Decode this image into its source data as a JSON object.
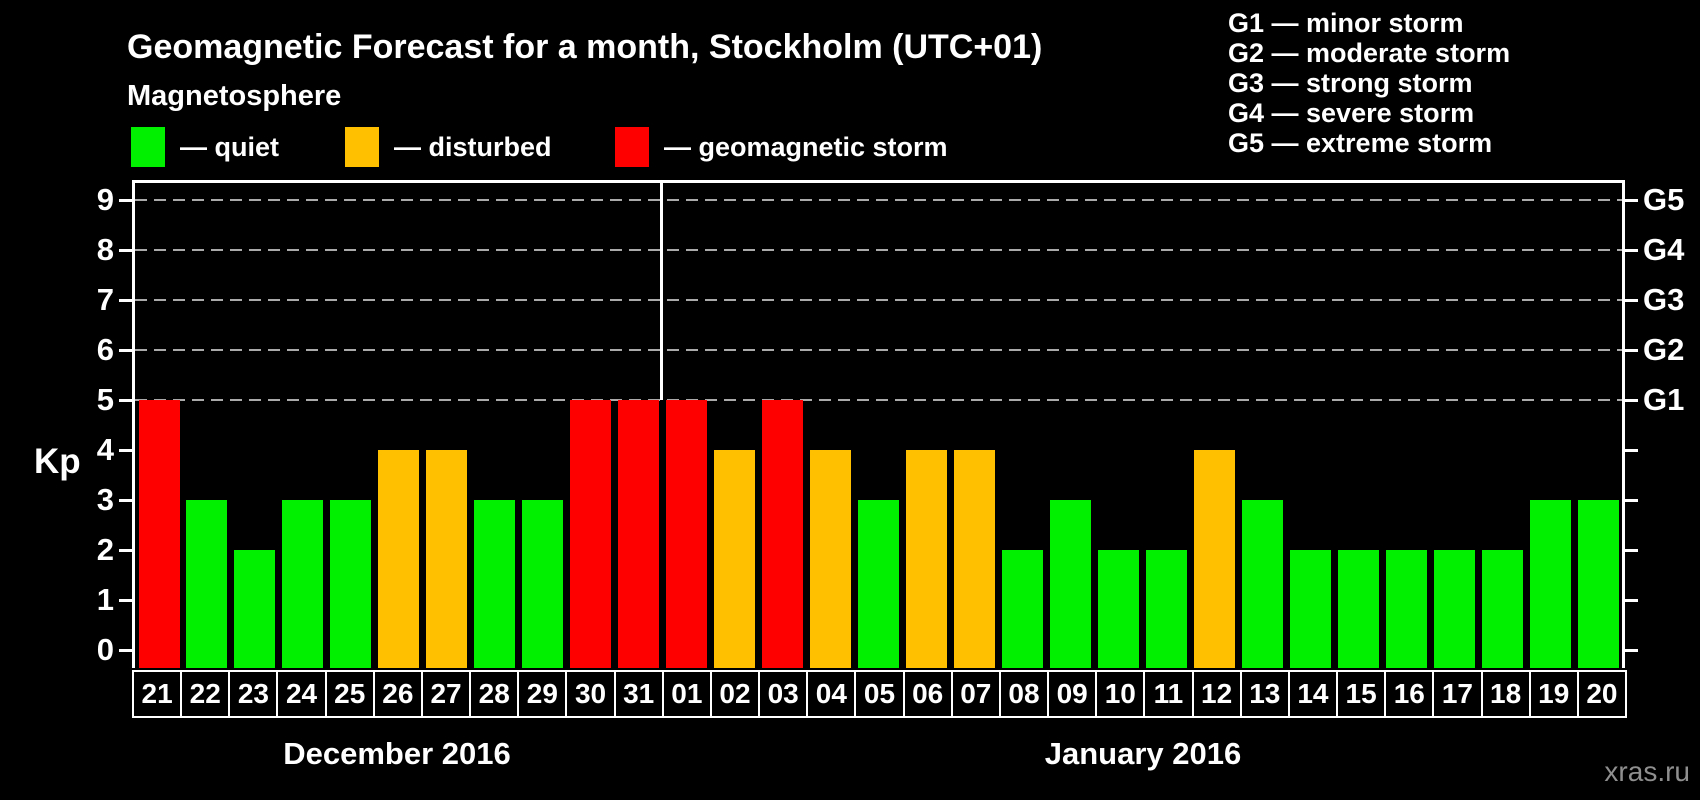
{
  "title": "Geomagnetic Forecast for a month, Stockholm (UTC+01)",
  "subtitle": "Magnetosphere",
  "legend": {
    "items": [
      {
        "name": "quiet",
        "label": "— quiet",
        "color": "#00f000"
      },
      {
        "name": "disturbed",
        "label": "— disturbed",
        "color": "#ffc000"
      },
      {
        "name": "storm",
        "label": "— geomagnetic storm",
        "color": "#ff0000"
      }
    ]
  },
  "storm_scale_legend": {
    "lines": [
      "G1 — minor storm",
      "G2 — moderate storm",
      "G3 — strong storm",
      "G4 — severe storm",
      "G5 — extreme storm"
    ]
  },
  "watermark": "xras.ru",
  "chart_data": {
    "type": "bar",
    "title": "Geomagnetic Forecast for a month, Stockholm (UTC+01)",
    "xlabel": "",
    "ylabel": "Kp",
    "ylim": [
      0,
      9.4
    ],
    "y_ticks": [
      0,
      1,
      2,
      3,
      4,
      5,
      6,
      7,
      8,
      9
    ],
    "gridlines_at": [
      5,
      6,
      7,
      8,
      9
    ],
    "grid_style": "dashed horizontal, gray",
    "legend_position": "top",
    "right_axis": {
      "labels": [
        "G1",
        "G2",
        "G3",
        "G4",
        "G5"
      ],
      "at_kp": [
        5,
        6,
        7,
        8,
        9
      ]
    },
    "categories": [
      "21",
      "22",
      "23",
      "24",
      "25",
      "26",
      "27",
      "28",
      "29",
      "30",
      "31",
      "01",
      "02",
      "03",
      "04",
      "05",
      "06",
      "07",
      "08",
      "09",
      "10",
      "11",
      "12",
      "13",
      "14",
      "15",
      "16",
      "17",
      "18",
      "19",
      "20"
    ],
    "values": [
      5,
      3,
      2,
      3,
      3,
      4,
      4,
      3,
      3,
      5,
      5,
      5,
      4,
      5,
      4,
      3,
      4,
      4,
      2,
      3,
      2,
      2,
      4,
      3,
      2,
      2,
      2,
      2,
      2,
      3,
      3
    ],
    "statuses": [
      "storm",
      "quiet",
      "quiet",
      "quiet",
      "quiet",
      "disturbed",
      "disturbed",
      "quiet",
      "quiet",
      "storm",
      "storm",
      "storm",
      "disturbed",
      "storm",
      "disturbed",
      "quiet",
      "disturbed",
      "disturbed",
      "quiet",
      "quiet",
      "quiet",
      "quiet",
      "disturbed",
      "quiet",
      "quiet",
      "quiet",
      "quiet",
      "quiet",
      "quiet",
      "quiet",
      "quiet"
    ],
    "status_colors": {
      "quiet": "#00f000",
      "disturbed": "#ffc000",
      "storm": "#ff0000"
    },
    "month_groups": [
      {
        "label": "December 2016",
        "start": 0,
        "count": 11
      },
      {
        "label": "January 2016",
        "start": 11,
        "count": 20
      }
    ],
    "divider_after_index": 10
  }
}
